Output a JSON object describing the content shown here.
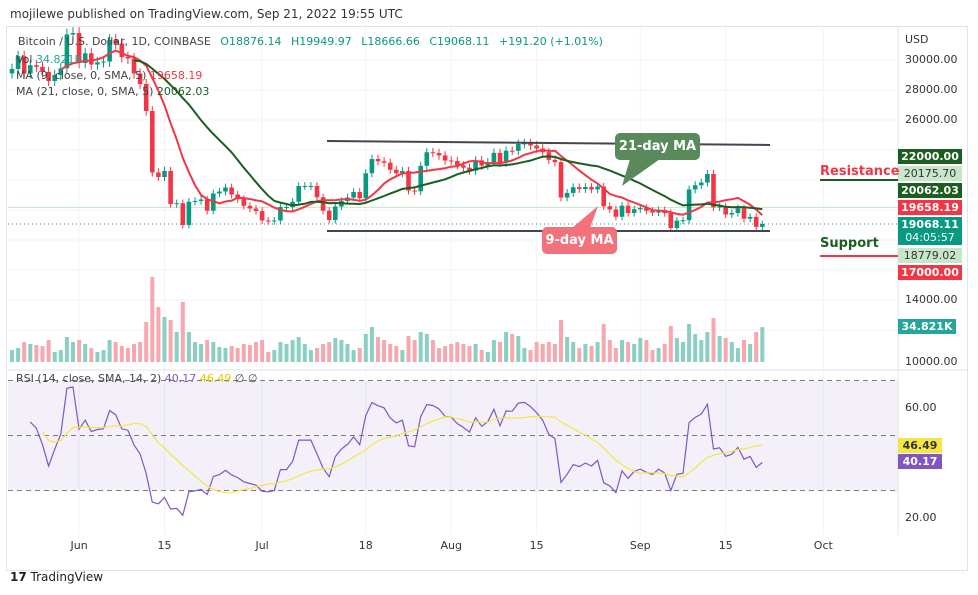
{
  "header": "mojilewe published on TradingView.com, Sep 21, 2022 19:55 UTC",
  "legend": {
    "symbol": "Bitcoin / U.S. Dollar, 1D, COINBASE",
    "open": "O18876.14",
    "high": "H19949.97",
    "low": "L18666.66",
    "close": "C19068.11",
    "change": "+191.20 (+1.01%)",
    "vol_label": "Vol",
    "vol_value": "34.821K",
    "ma9_label": "MA (9, close, 0, SMA, 5)",
    "ma9_value": "19658.19",
    "ma21_label": "MA (21, close, 0, SMA, 5)",
    "ma21_value": "20062.03",
    "rsi_label": "RSI (14, close, SMA, 14, 2)",
    "rsi_value": "40.17",
    "rsi_ma_value": "46.49",
    "rsi_extra": "∅ ∅"
  },
  "axis": {
    "currency": "USD",
    "price_ticks": [
      "30000.00",
      "28000.00",
      "26000.00",
      "14000.00",
      "10000.00"
    ],
    "rsi_ticks": [
      "60.00",
      "20.00"
    ],
    "date_ticks": [
      "Jun",
      "15",
      "Jul",
      "18",
      "Aug",
      "15",
      "Sep",
      "15",
      "Oct"
    ]
  },
  "price_labels": {
    "l22000": "22000.00",
    "l20175": "20175.70",
    "ma21": "20062.03",
    "ma9": "19658.19",
    "last": "19068.11",
    "countdown": "04:05:57",
    "l18779": "18779.02",
    "l17000": "17000.00",
    "vol": "34.821K",
    "rsi_ma": "46.49",
    "rsi": "40.17"
  },
  "annotations": {
    "resistance": "Resistance",
    "support": "Support",
    "ma21_callout": "21-day MA",
    "ma9_callout": "9-day MA"
  },
  "colors": {
    "up": "#089981",
    "down": "#f23645",
    "ma9": "#f23645",
    "ma21": "#1b5e20",
    "rsi": "#7e57c2",
    "rsi_ma": "#f5e642"
  },
  "footer": "TradingView",
  "chart_data": {
    "type": "candlestick",
    "start_date": "2022-05-21",
    "end_date": "2022-09-21",
    "closes": [
      29400,
      30250,
      29100,
      29650,
      29540,
      29200,
      28600,
      29000,
      29450,
      31700,
      31800,
      29800,
      30450,
      29700,
      29850,
      29900,
      31350,
      31100,
      30200,
      30100,
      29100,
      28400,
      26600,
      22500,
      22200,
      22600,
      20400,
      20450,
      19000,
      20550,
      20600,
      20700,
      19950,
      21100,
      21230,
      21500,
      21030,
      20730,
      20280,
      20100,
      19930,
      19300,
      19250,
      19300,
      20200,
      20200,
      20550,
      21600,
      21600,
      21600,
      20850,
      19950,
      19330,
      20230,
      20600,
      20830,
      21200,
      20790,
      22450,
      23400,
      23250,
      23150,
      22680,
      22450,
      22600,
      21300,
      21250,
      22950,
      23850,
      23800,
      23640,
      23300,
      23270,
      22980,
      22820,
      22620,
      23310,
      22960,
      23180,
      23810,
      23150,
      23950,
      23940,
      24400,
      24440,
      24300,
      24100,
      23850,
      23340,
      23190,
      20830,
      21140,
      21520,
      21400,
      21530,
      21370,
      21560,
      20250,
      20040,
      19550,
      20290,
      19800,
      20050,
      20130,
      19950,
      19830,
      19990,
      19800,
      18800,
      19290,
      19320,
      21370,
      21650,
      21830,
      22400,
      20170,
      20230,
      19700,
      19800,
      20110,
      19420,
      19540,
      18876.14,
      19068.11
    ],
    "volumes_k": [
      12,
      14,
      20,
      18,
      17,
      16,
      22,
      10,
      12,
      25,
      20,
      22,
      18,
      14,
      10,
      12,
      22,
      20,
      16,
      14,
      18,
      20,
      40,
      85,
      55,
      45,
      42,
      30,
      60,
      30,
      20,
      18,
      22,
      20,
      15,
      14,
      16,
      14,
      18,
      17,
      20,
      22,
      10,
      12,
      20,
      18,
      22,
      25,
      18,
      12,
      14,
      18,
      20,
      24,
      22,
      18,
      12,
      14,
      28,
      35,
      25,
      22,
      18,
      16,
      12,
      26,
      22,
      30,
      28,
      22,
      14,
      16,
      18,
      20,
      18,
      16,
      18,
      12,
      10,
      22,
      20,
      30,
      28,
      26,
      14,
      12,
      20,
      18,
      20,
      18,
      42,
      25,
      20,
      14,
      18,
      16,
      20,
      38,
      22,
      14,
      22,
      20,
      18,
      24,
      22,
      12,
      14,
      18,
      36,
      24,
      20,
      38,
      28,
      22,
      30,
      44,
      26,
      24,
      20,
      14,
      22,
      18,
      30,
      34.821
    ],
    "price_range": [
      9500,
      31500
    ],
    "rsi_range": [
      15,
      80
    ],
    "rsi_bands": [
      70,
      50,
      30
    ],
    "annotation_levels": {
      "resistance": 22000,
      "support": 17000,
      "channel_top": [
        24300,
        24100
      ],
      "channel_bottom": 18779.02
    }
  }
}
